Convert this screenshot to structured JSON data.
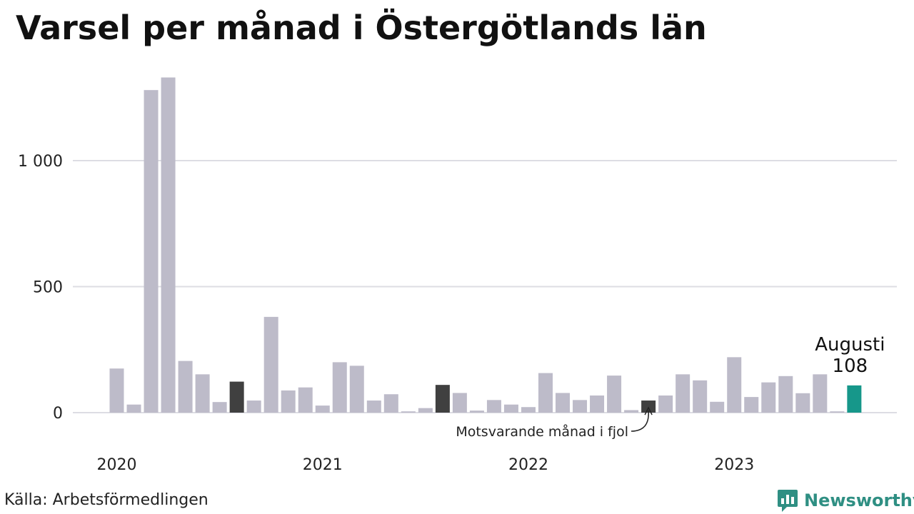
{
  "chart_data": {
    "type": "bar",
    "title": "Varsel per månad i Östergötlands län",
    "ylim": [
      0,
      1334
    ],
    "yticks": [
      0,
      500,
      1000
    ],
    "ytick_labels": [
      "0",
      "500",
      "1 000"
    ],
    "grid": true,
    "x_year_labels": [
      {
        "label": "2020",
        "index": 0
      },
      {
        "label": "2021",
        "index": 12
      },
      {
        "label": "2022",
        "index": 24
      },
      {
        "label": "2023",
        "index": 36
      }
    ],
    "values": [
      175,
      32,
      1280,
      1330,
      205,
      152,
      42,
      123,
      48,
      380,
      88,
      100,
      28,
      200,
      186,
      48,
      73,
      5,
      18,
      110,
      78,
      8,
      50,
      32,
      22,
      157,
      78,
      50,
      68,
      147,
      10,
      48,
      68,
      152,
      128,
      43,
      220,
      62,
      120,
      145,
      77,
      152,
      5,
      108
    ],
    "highlight_indices": [
      7,
      19,
      31
    ],
    "current_index": 43,
    "colors": {
      "default": "#bdbbc9",
      "previous_same_month": "#404040",
      "current": "#16978a",
      "grid": "#dddde3"
    },
    "annotations": {
      "previous_label": "Motsvarande månad i fjol",
      "current_month": "Augusti",
      "current_value": "108"
    }
  },
  "footer": {
    "source": "Källa: Arbetsförmedlingen",
    "brand": "Newsworthy"
  },
  "icons": {
    "brand_logo": "newsworthy-logo-icon"
  }
}
